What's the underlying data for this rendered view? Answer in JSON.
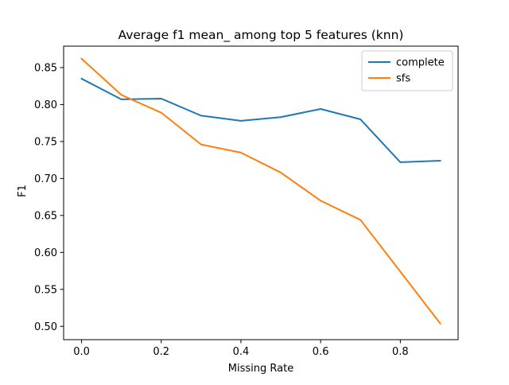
{
  "chart_data": {
    "type": "line",
    "title": "Average f1 mean_ among top 5 features (knn)",
    "xlabel": "Missing Rate",
    "ylabel": "F1",
    "xlim": [
      -0.045,
      0.945
    ],
    "ylim": [
      0.482,
      0.879
    ],
    "x": [
      0.0,
      0.1,
      0.2,
      0.3,
      0.4,
      0.5,
      0.6,
      0.7,
      0.8,
      0.9
    ],
    "xticks": [
      0.0,
      0.2,
      0.4,
      0.6,
      0.8
    ],
    "xtick_labels": [
      "0.0",
      "0.2",
      "0.4",
      "0.6",
      "0.8"
    ],
    "yticks": [
      0.5,
      0.55,
      0.6,
      0.65,
      0.7,
      0.75,
      0.8,
      0.85
    ],
    "ytick_labels": [
      "0.50",
      "0.55",
      "0.60",
      "0.65",
      "0.70",
      "0.75",
      "0.80",
      "0.85"
    ],
    "grid": false,
    "legend_position": "upper right",
    "series": [
      {
        "name": "complete",
        "color": "#1f77b4",
        "values": [
          0.835,
          0.807,
          0.808,
          0.785,
          0.778,
          0.783,
          0.794,
          0.78,
          0.722,
          0.724
        ]
      },
      {
        "name": "sfs",
        "color": "#ff7f0e",
        "values": [
          0.862,
          0.813,
          0.789,
          0.746,
          0.735,
          0.708,
          0.67,
          0.644,
          0.574,
          0.504
        ]
      }
    ]
  }
}
